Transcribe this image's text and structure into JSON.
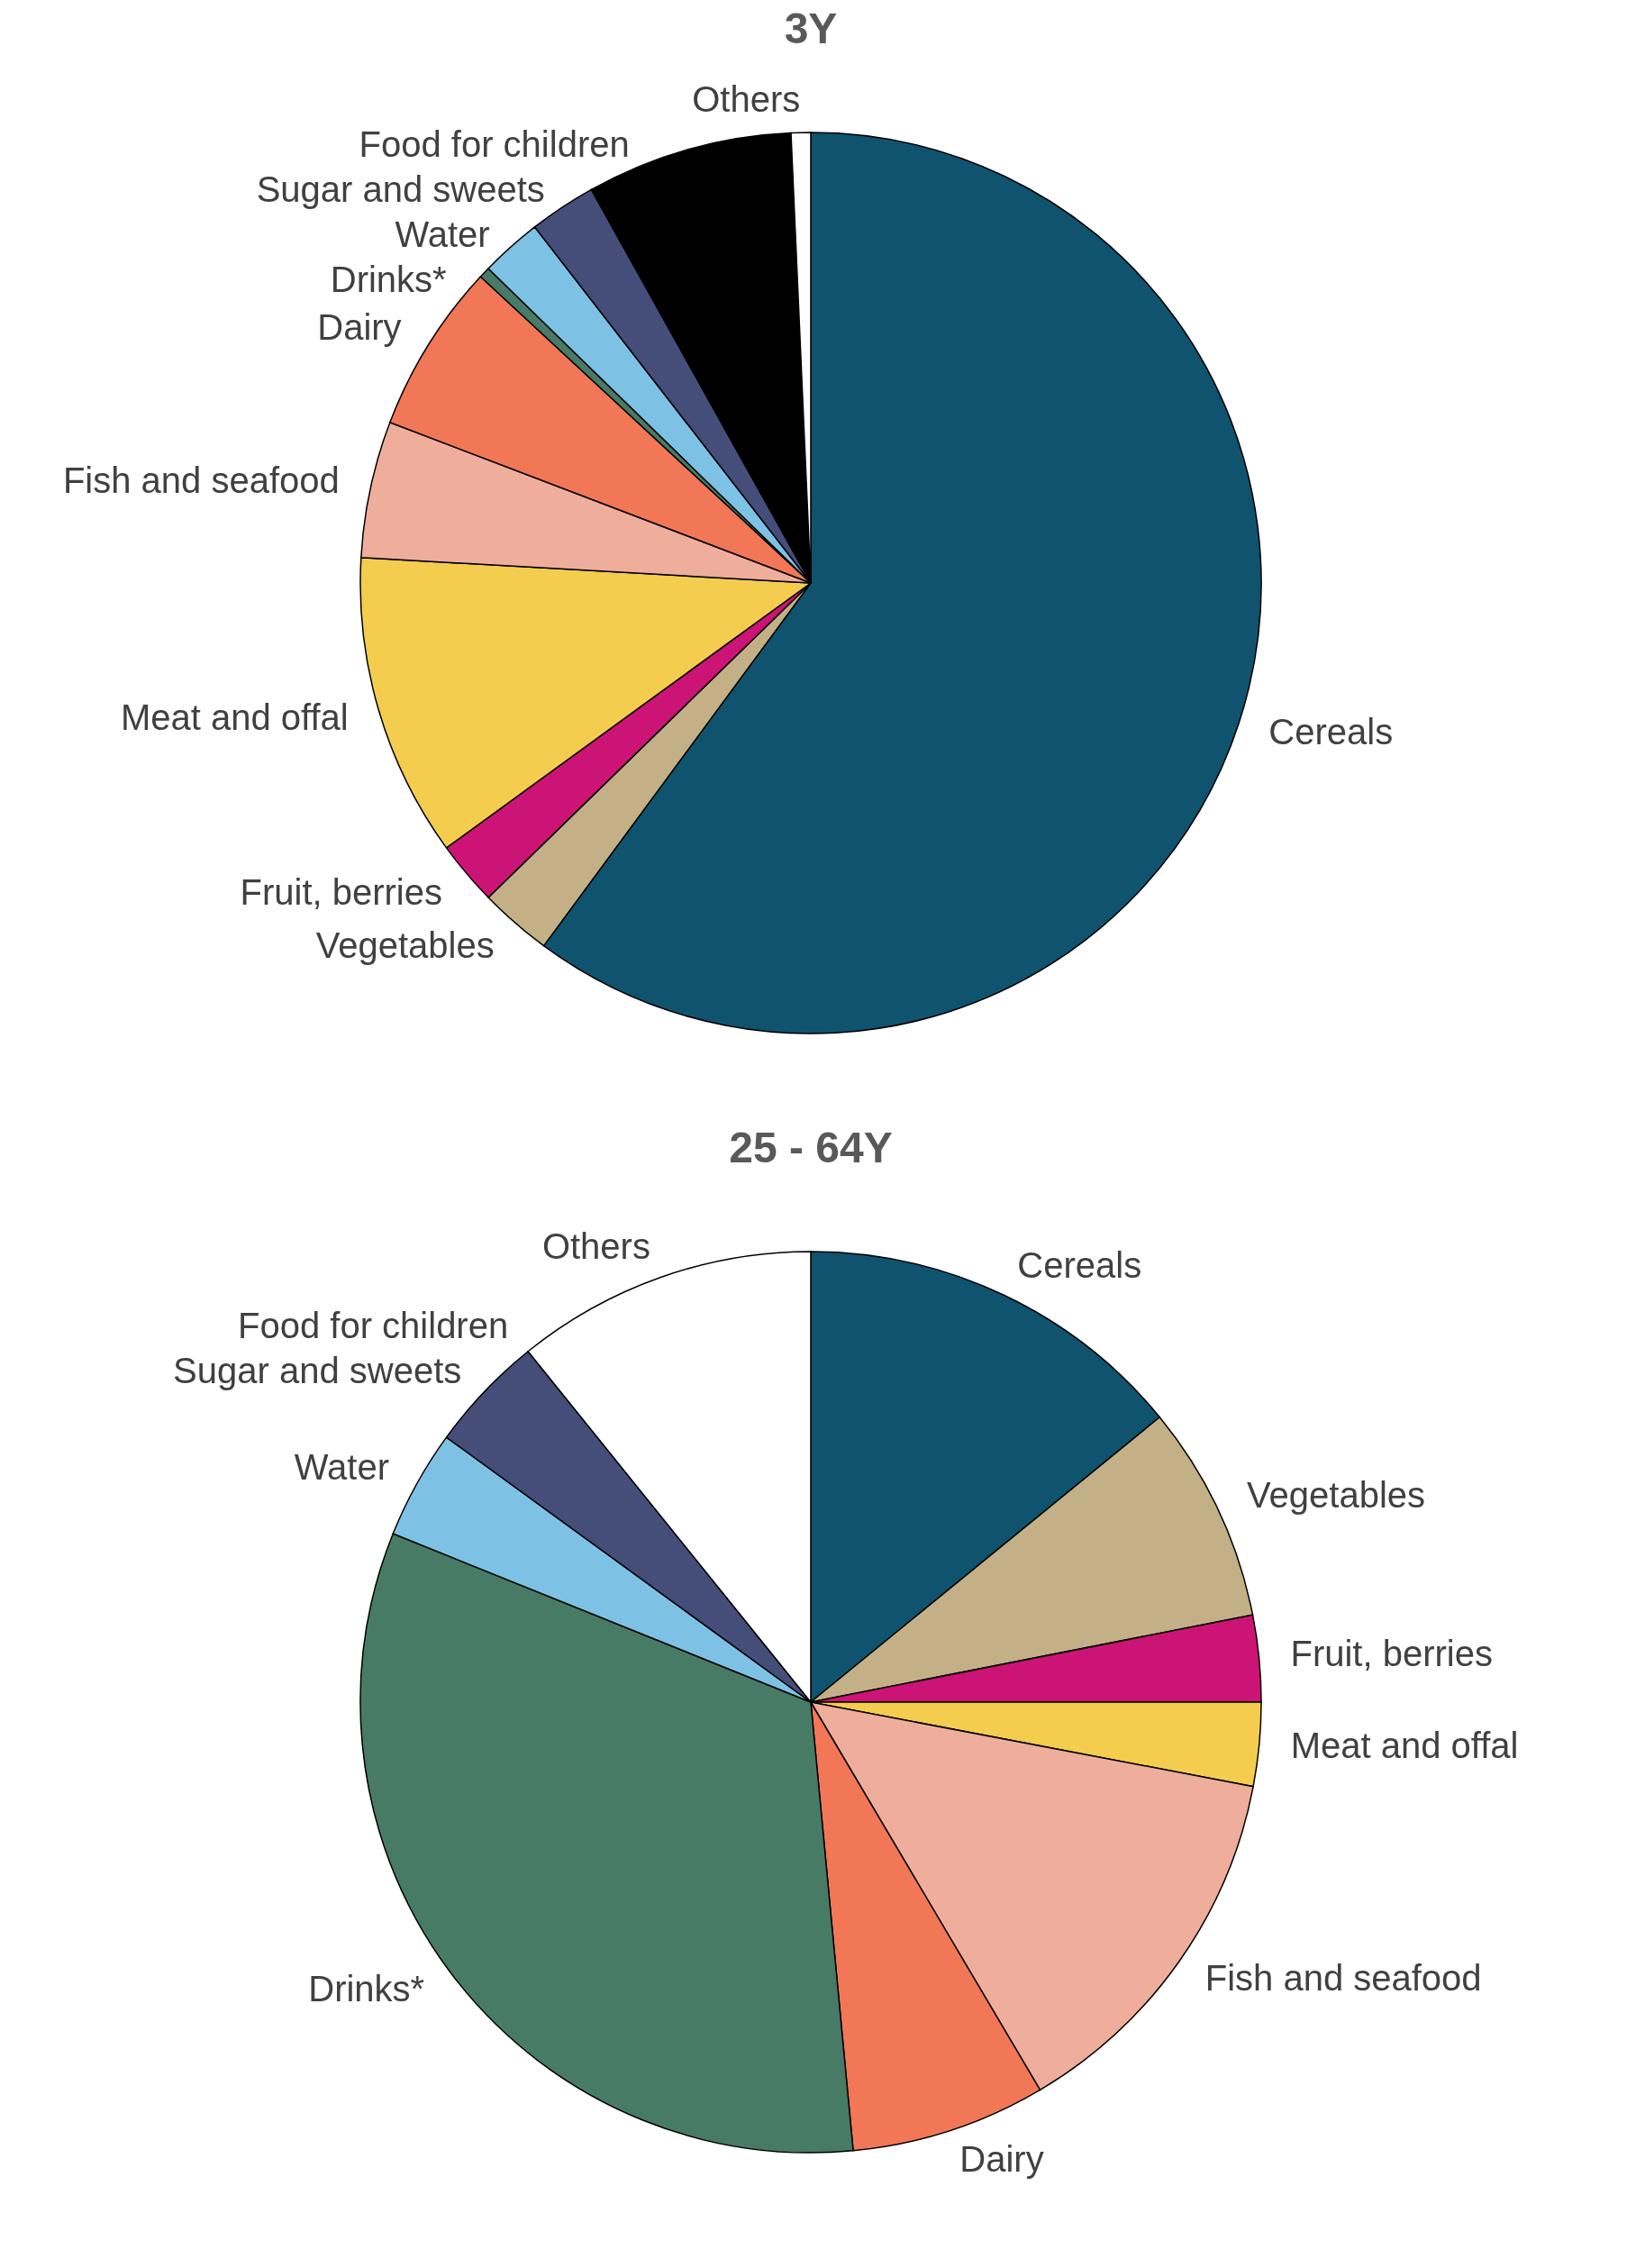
{
  "chart_data": [
    {
      "type": "pie",
      "title": "3Y",
      "categories": [
        "Cereals",
        "Vegetables",
        "Fruit, berries",
        "Meat and offal",
        "Fish and seafood",
        "Dairy",
        "Drinks*",
        "Water",
        "Sugar and sweets",
        "Food for children",
        "Others"
      ],
      "values": [
        60.1,
        2.6,
        2.3,
        10.9,
        4.9,
        6.1,
        0.4,
        2.2,
        2.4,
        7.4,
        0.7
      ],
      "colors": [
        "#10536f",
        "#c4b086",
        "#cc1477",
        "#f4cd4f",
        "#efae9b",
        "#f27757",
        "#477b65",
        "#7dc2e5",
        "#454d79",
        "#000000",
        "#ffffff"
      ]
    },
    {
      "type": "pie",
      "title": "25 - 64Y",
      "categories": [
        "Cereals",
        "Vegetables",
        "Fruit, berries",
        "Meat and offal",
        "Fish and seafood",
        "Dairy",
        "Drinks*",
        "Water",
        "Sugar and sweets",
        "Food for children",
        "Others"
      ],
      "values": [
        14.1,
        7.8,
        3.1,
        3.0,
        13.5,
        7.0,
        32.6,
        3.9,
        4.2,
        0,
        10.8
      ],
      "colors": [
        "#10536f",
        "#c4b086",
        "#cc1477",
        "#f4cd4f",
        "#efae9b",
        "#f27757",
        "#477b65",
        "#7dc2e5",
        "#454d79",
        "#000000",
        "#ffffff"
      ]
    }
  ]
}
